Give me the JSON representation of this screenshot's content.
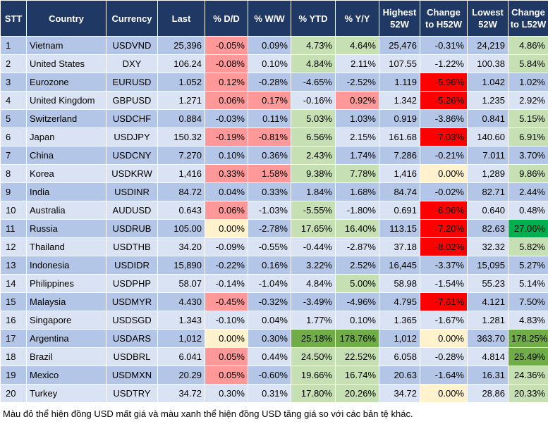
{
  "columns": [
    "STT",
    "Country",
    "Currency",
    "Last",
    "% D/D",
    "% W/W",
    "% YTD",
    "% Y/Y",
    "Highest 52W",
    "Change to H52W",
    "Lowest 52W",
    "Change to L52W"
  ],
  "rows": [
    {
      "stt": "1",
      "country": "Vietnam",
      "currency": "USDVND",
      "last": "25,396",
      "dd": "-0.05%",
      "ww": "0.09%",
      "ytd": "4.73%",
      "yy": "4.64%",
      "high": "25,476",
      "chh": "-0.31%",
      "low": "24,219",
      "chl": "4.86%"
    },
    {
      "stt": "2",
      "country": "United States",
      "currency": "DXY",
      "last": "106.24",
      "dd": "-0.08%",
      "ww": "0.10%",
      "ytd": "4.84%",
      "yy": "2.11%",
      "high": "107.55",
      "chh": "-1.22%",
      "low": "100.38",
      "chl": "5.84%"
    },
    {
      "stt": "3",
      "country": "Eurozone",
      "currency": "EURUSD",
      "last": "1.052",
      "dd": "0.12%",
      "ww": "-0.28%",
      "ytd": "-4.65%",
      "yy": "-2.52%",
      "high": "1.119",
      "chh": "-5.96%",
      "low": "1.042",
      "chl": "1.02%"
    },
    {
      "stt": "4",
      "country": "United Kingdom",
      "currency": "GBPUSD",
      "last": "1.271",
      "dd": "0.06%",
      "ww": "0.17%",
      "ytd": "-0.16%",
      "yy": "0.92%",
      "high": "1.342",
      "chh": "-5.26%",
      "low": "1.235",
      "chl": "2.92%"
    },
    {
      "stt": "5",
      "country": "Switzerland",
      "currency": "USDCHF",
      "last": "0.884",
      "dd": "-0.03%",
      "ww": "0.11%",
      "ytd": "5.03%",
      "yy": "1.03%",
      "high": "0.919",
      "chh": "-3.86%",
      "low": "0.841",
      "chl": "5.15%"
    },
    {
      "stt": "6",
      "country": "Japan",
      "currency": "USDJPY",
      "last": "150.32",
      "dd": "-0.19%",
      "ww": "-0.81%",
      "ytd": "6.56%",
      "yy": "2.15%",
      "high": "161.68",
      "chh": "-7.03%",
      "low": "140.60",
      "chl": "6.91%"
    },
    {
      "stt": "7",
      "country": "China",
      "currency": "USDCNY",
      "last": "7.270",
      "dd": "0.10%",
      "ww": "0.36%",
      "ytd": "2.43%",
      "yy": "1.74%",
      "high": "7.286",
      "chh": "-0.21%",
      "low": "7.011",
      "chl": "3.70%"
    },
    {
      "stt": "8",
      "country": "Korea",
      "currency": "USDKRW",
      "last": "1,416",
      "dd": "0.33%",
      "ww": "1.58%",
      "ytd": "9.38%",
      "yy": "7.78%",
      "high": "1,416",
      "chh": "0.00%",
      "low": "1,289",
      "chl": "9.86%"
    },
    {
      "stt": "9",
      "country": "India",
      "currency": "USDINR",
      "last": "84.72",
      "dd": "0.04%",
      "ww": "0.33%",
      "ytd": "1.84%",
      "yy": "1.68%",
      "high": "84.74",
      "chh": "-0.02%",
      "low": "82.71",
      "chl": "2.44%"
    },
    {
      "stt": "10",
      "country": "Australia",
      "currency": "AUDUSD",
      "last": "0.643",
      "dd": "0.06%",
      "ww": "-1.03%",
      "ytd": "-5.55%",
      "yy": "-1.80%",
      "high": "0.691",
      "chh": "-6.96%",
      "low": "0.640",
      "chl": "0.48%"
    },
    {
      "stt": "11",
      "country": "Russia",
      "currency": "USDRUB",
      "last": "105.00",
      "dd": "0.00%",
      "ww": "-2.78%",
      "ytd": "17.65%",
      "yy": "16.40%",
      "high": "113.15",
      "chh": "-7.20%",
      "low": "82.63",
      "chl": "27.06%"
    },
    {
      "stt": "12",
      "country": "Thailand",
      "currency": "USDTHB",
      "last": "34.20",
      "dd": "-0.09%",
      "ww": "-0.55%",
      "ytd": "-0.44%",
      "yy": "-2.87%",
      "high": "37.18",
      "chh": "-8.02%",
      "low": "32.32",
      "chl": "5.82%"
    },
    {
      "stt": "13",
      "country": "Indonesia",
      "currency": "USDIDR",
      "last": "15,890",
      "dd": "-0.22%",
      "ww": "0.16%",
      "ytd": "3.22%",
      "yy": "2.52%",
      "high": "16,445",
      "chh": "-3.37%",
      "low": "15,095",
      "chl": "5.27%"
    },
    {
      "stt": "14",
      "country": "Philippines",
      "currency": "USDPHP",
      "last": "58.07",
      "dd": "-0.14%",
      "ww": "-1.04%",
      "ytd": "4.84%",
      "yy": "5.00%",
      "high": "58.98",
      "chh": "-1.54%",
      "low": "55.23",
      "chl": "5.14%"
    },
    {
      "stt": "15",
      "country": "Malaysia",
      "currency": "USDMYR",
      "last": "4.430",
      "dd": "-0.45%",
      "ww": "-0.32%",
      "ytd": "-3.49%",
      "yy": "-4.96%",
      "high": "4.795",
      "chh": "-7.61%",
      "low": "4.121",
      "chl": "7.50%"
    },
    {
      "stt": "16",
      "country": "Singapore",
      "currency": "USDSGD",
      "last": "1.343",
      "dd": "-0.10%",
      "ww": "0.04%",
      "ytd": "1.77%",
      "yy": "0.10%",
      "high": "1.365",
      "chh": "-1.67%",
      "low": "1.281",
      "chl": "4.83%"
    },
    {
      "stt": "17",
      "country": "Argentina",
      "currency": "USDARS",
      "last": "1,012",
      "dd": "0.00%",
      "ww": "0.30%",
      "ytd": "25.18%",
      "yy": "178.76%",
      "high": "1,012",
      "chh": "0.00%",
      "low": "363.70",
      "chl": "178.25%"
    },
    {
      "stt": "18",
      "country": "Brazil",
      "currency": "USDBRL",
      "last": "6.041",
      "dd": "0.05%",
      "ww": "0.44%",
      "ytd": "24.50%",
      "yy": "22.52%",
      "high": "6.058",
      "chh": "-0.28%",
      "low": "4.814",
      "chl": "25.49%"
    },
    {
      "stt": "19",
      "country": "Mexico",
      "currency": "USDMXN",
      "last": "20.29",
      "dd": "0.05%",
      "ww": "-0.60%",
      "ytd": "19.66%",
      "yy": "16.74%",
      "high": "20.63",
      "chh": "-1.64%",
      "low": "16.31",
      "chl": "24.36%"
    },
    {
      "stt": "20",
      "country": "Turkey",
      "currency": "USDTRY",
      "last": "34.72",
      "dd": "0.30%",
      "ww": "0.31%",
      "ytd": "17.80%",
      "yy": "20.26%",
      "high": "34.72",
      "chh": "0.00%",
      "low": "28.86",
      "chl": "20.33%"
    }
  ],
  "cell_colors": {
    "0": {
      "dd": "red",
      "ytd": "lightgreen",
      "yy": "lightgreen",
      "chl": "lightgreen"
    },
    "1": {
      "dd": "red",
      "ytd": "lightgreen",
      "chl": "lightgreen"
    },
    "2": {
      "dd": "red",
      "chh": "darkred"
    },
    "3": {
      "dd": "red",
      "ww": "red",
      "yy": "red",
      "chh": "darkred"
    },
    "4": {
      "ytd": "lightgreen",
      "chl": "lightgreen"
    },
    "5": {
      "dd": "red",
      "ww": "red",
      "ytd": "lightgreen",
      "chh": "darkred",
      "chl": "lightgreen"
    },
    "6": {
      "ytd": "lightgreen"
    },
    "7": {
      "dd": "red",
      "ww": "red",
      "ytd": "lightgreen",
      "yy": "lightgreen",
      "chh": "lightyellow",
      "chl": "lightgreen"
    },
    "9": {
      "dd": "red",
      "ytd": "lightgreen",
      "chh": "darkred"
    },
    "10": {
      "dd": "lightyellow",
      "ytd": "lightgreen",
      "yy": "lightgreen",
      "chh": "darkred",
      "chl": "deepgreen"
    },
    "11": {
      "chh": "darkred",
      "chl": "lightgreen"
    },
    "13": {
      "yy": "lightgreen"
    },
    "14": {
      "dd": "red",
      "chh": "darkred"
    },
    "16": {
      "dd": "lightyellow",
      "ytd": "green",
      "yy": "green",
      "chh": "lightyellow",
      "chl": "green"
    },
    "17": {
      "dd": "red",
      "ytd": "lightgreen",
      "yy": "lightgreen",
      "chl": "green"
    },
    "18": {
      "dd": "red",
      "ytd": "lightgreen",
      "yy": "lightgreen",
      "chl": "lightgreen"
    },
    "19": {
      "ytd": "lightgreen",
      "yy": "lightgreen",
      "chh": "lightyellow",
      "chl": "lightgreen"
    }
  },
  "footnote": "Màu đỏ thể hiện đồng USD mất giá và màu xanh thể hiện đồng USD tăng giá so với các bản tệ khác."
}
